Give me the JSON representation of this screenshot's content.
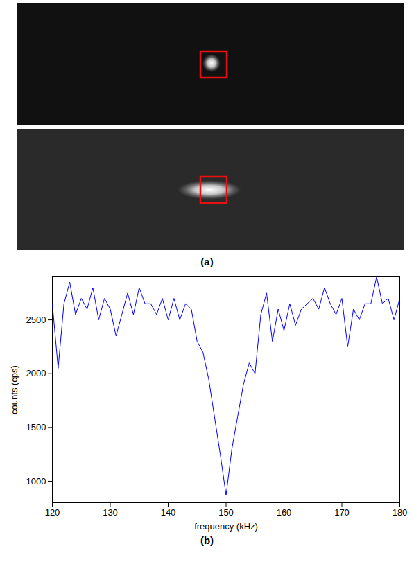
{
  "figure": {
    "panels": [
      {
        "label": "(a)",
        "type": "image",
        "images": 2
      },
      {
        "label": "(b)",
        "type": "chart"
      }
    ]
  },
  "chart_data": {
    "type": "line",
    "x_label": "frequency (kHz)",
    "y_label": "counts (cps)",
    "x": [
      120,
      121,
      122,
      123,
      124,
      125,
      126,
      127,
      128,
      129,
      130,
      131,
      132,
      133,
      134,
      135,
      136,
      137,
      138,
      139,
      140,
      141,
      142,
      143,
      144,
      145,
      146,
      147,
      148,
      149,
      150,
      151,
      152,
      153,
      154,
      155,
      156,
      157,
      158,
      159,
      160,
      161,
      162,
      163,
      164,
      165,
      166,
      167,
      168,
      169,
      170,
      171,
      172,
      173,
      174,
      175,
      176,
      177,
      178,
      179,
      180
    ],
    "values": [
      2650,
      2050,
      2650,
      2850,
      2550,
      2700,
      2600,
      2800,
      2500,
      2700,
      2600,
      2350,
      2550,
      2750,
      2550,
      2800,
      2650,
      2650,
      2550,
      2700,
      2500,
      2700,
      2500,
      2650,
      2600,
      2300,
      2200,
      1950,
      1600,
      1250,
      870,
      1300,
      1600,
      1900,
      2100,
      2000,
      2550,
      2750,
      2300,
      2600,
      2400,
      2650,
      2450,
      2600,
      2650,
      2700,
      2600,
      2800,
      2650,
      2550,
      2700,
      2250,
      2600,
      2500,
      2650,
      2650,
      2900,
      2650,
      2700,
      2500,
      2700
    ],
    "color": "#0000ff",
    "xlim": [
      120,
      180
    ],
    "xticks": [
      120,
      130,
      140,
      150,
      160,
      170,
      180
    ],
    "ylim": [
      800,
      2900
    ],
    "yticks": [
      1000,
      1500,
      2000,
      2500
    ],
    "grid": false
  }
}
